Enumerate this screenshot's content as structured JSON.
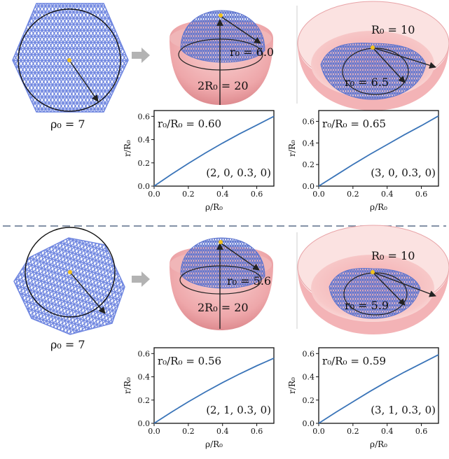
{
  "panels": [
    {
      "flat": {
        "rho_label": "ρ₀ = 7"
      },
      "dome": {
        "r0_label": "r₀ = 6.0",
        "diameter_label": "2R₀ = 20"
      },
      "bowl": {
        "R0_label": "R₀ = 10",
        "r0_label": "r₀ = 6.5"
      }
    },
    {
      "flat": {
        "rho_label": "ρ₀ = 7"
      },
      "dome": {
        "r0_label": "r₀ = 5.6",
        "diameter_label": "2R₀ = 20"
      },
      "bowl": {
        "R0_label": "R₀ = 10",
        "r0_label": "r₀ = 5.9"
      }
    }
  ],
  "chart_data": [
    {
      "type": "line",
      "ratio_label": "r₀/R₀ = 0.60",
      "params_label": "(2, 0, 0.3, 0)",
      "xlabel": "ρ/R₀",
      "ylabel": "r/R₀",
      "xlim": [
        0,
        0.7
      ],
      "ylim": [
        0,
        0.65
      ],
      "xticks": [
        "0.0",
        "0.2",
        "0.4",
        "0.6"
      ],
      "yticks": [
        "0.0",
        "0.2",
        "0.4",
        "0.6"
      ],
      "color": "#3a74b8",
      "x": [
        0,
        0.1,
        0.2,
        0.3,
        0.4,
        0.5,
        0.6,
        0.7
      ],
      "y": [
        0,
        0.1,
        0.195,
        0.285,
        0.37,
        0.45,
        0.525,
        0.6
      ]
    },
    {
      "type": "line",
      "ratio_label": "r₀/R₀ = 0.65",
      "params_label": "(3, 0, 0.3, 0)",
      "xlabel": "ρ/R₀",
      "ylabel": "r/R₀",
      "xlim": [
        0,
        0.7
      ],
      "ylim": [
        0,
        0.7
      ],
      "xticks": [
        "0.0",
        "0.2",
        "0.4",
        "0.6"
      ],
      "yticks": [
        "0.0",
        "0.2",
        "0.4",
        "0.6"
      ],
      "color": "#3a74b8",
      "x": [
        0,
        0.1,
        0.2,
        0.3,
        0.4,
        0.5,
        0.6,
        0.7
      ],
      "y": [
        0,
        0.1,
        0.2,
        0.295,
        0.385,
        0.475,
        0.56,
        0.65
      ]
    },
    {
      "type": "line",
      "ratio_label": "r₀/R₀ = 0.56",
      "params_label": "(2, 1, 0.3, 0)",
      "xlabel": "ρ/R₀",
      "ylabel": "r/R₀",
      "xlim": [
        0,
        0.7
      ],
      "ylim": [
        0,
        0.65
      ],
      "xticks": [
        "0.0",
        "0.2",
        "0.4",
        "0.6"
      ],
      "yticks": [
        "0.0",
        "0.2",
        "0.4",
        "0.6"
      ],
      "color": "#3a74b8",
      "x": [
        0,
        0.1,
        0.2,
        0.3,
        0.4,
        0.5,
        0.6,
        0.7
      ],
      "y": [
        0,
        0.095,
        0.185,
        0.27,
        0.35,
        0.425,
        0.495,
        0.56
      ]
    },
    {
      "type": "line",
      "ratio_label": "r₀/R₀ = 0.59",
      "params_label": "(3, 1, 0.3, 0)",
      "xlabel": "ρ/R₀",
      "ylabel": "r/R₀",
      "xlim": [
        0,
        0.7
      ],
      "ylim": [
        0,
        0.65
      ],
      "xticks": [
        "0.0",
        "0.2",
        "0.4",
        "0.6"
      ],
      "yticks": [
        "0.0",
        "0.2",
        "0.4",
        "0.6"
      ],
      "color": "#3a74b8",
      "x": [
        0,
        0.1,
        0.2,
        0.3,
        0.4,
        0.5,
        0.6,
        0.7
      ],
      "y": [
        0,
        0.095,
        0.185,
        0.275,
        0.36,
        0.44,
        0.515,
        0.59
      ]
    }
  ],
  "colors": {
    "lattice": "#7f95e6",
    "lattice_dark": "#5a6fc8",
    "shell": "#f4b8b8",
    "shell_dark": "#e08e92",
    "arrow": "#222222",
    "center_dot": "#f2c21c",
    "divider": "#5b6f8a",
    "transition_arrow": "#b3b3b3"
  }
}
